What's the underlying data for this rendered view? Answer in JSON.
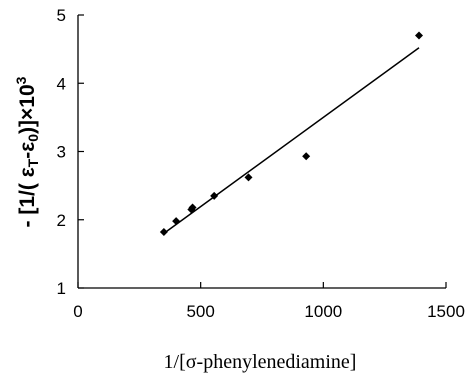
{
  "chart_data": {
    "type": "scatter",
    "xlabel": "1/[σ-phenylenediamine]",
    "ylabel": {
      "prefix": "- [1/( ε",
      "sub1": "T",
      "mid": "-ε",
      "sub2": "0",
      "suffix": ")]×10",
      "sup": "3"
    },
    "xlim": [
      0,
      1500
    ],
    "ylim": [
      1,
      5
    ],
    "x_ticks": [
      0,
      500,
      1000,
      1500
    ],
    "y_ticks": [
      1,
      2,
      3,
      4,
      5
    ],
    "grid": false,
    "series": [
      {
        "type": "scatter",
        "marker": "diamond",
        "color": "#000000",
        "points": [
          [
            350,
            1.82
          ],
          [
            400,
            1.98
          ],
          [
            462,
            2.15
          ],
          [
            467,
            2.18
          ],
          [
            555,
            2.35
          ],
          [
            695,
            2.62
          ],
          [
            930,
            2.93
          ],
          [
            1390,
            4.7
          ]
        ]
      },
      {
        "type": "line",
        "color": "#000000",
        "points": [
          [
            350,
            1.8
          ],
          [
            1390,
            4.52
          ]
        ]
      }
    ]
  }
}
